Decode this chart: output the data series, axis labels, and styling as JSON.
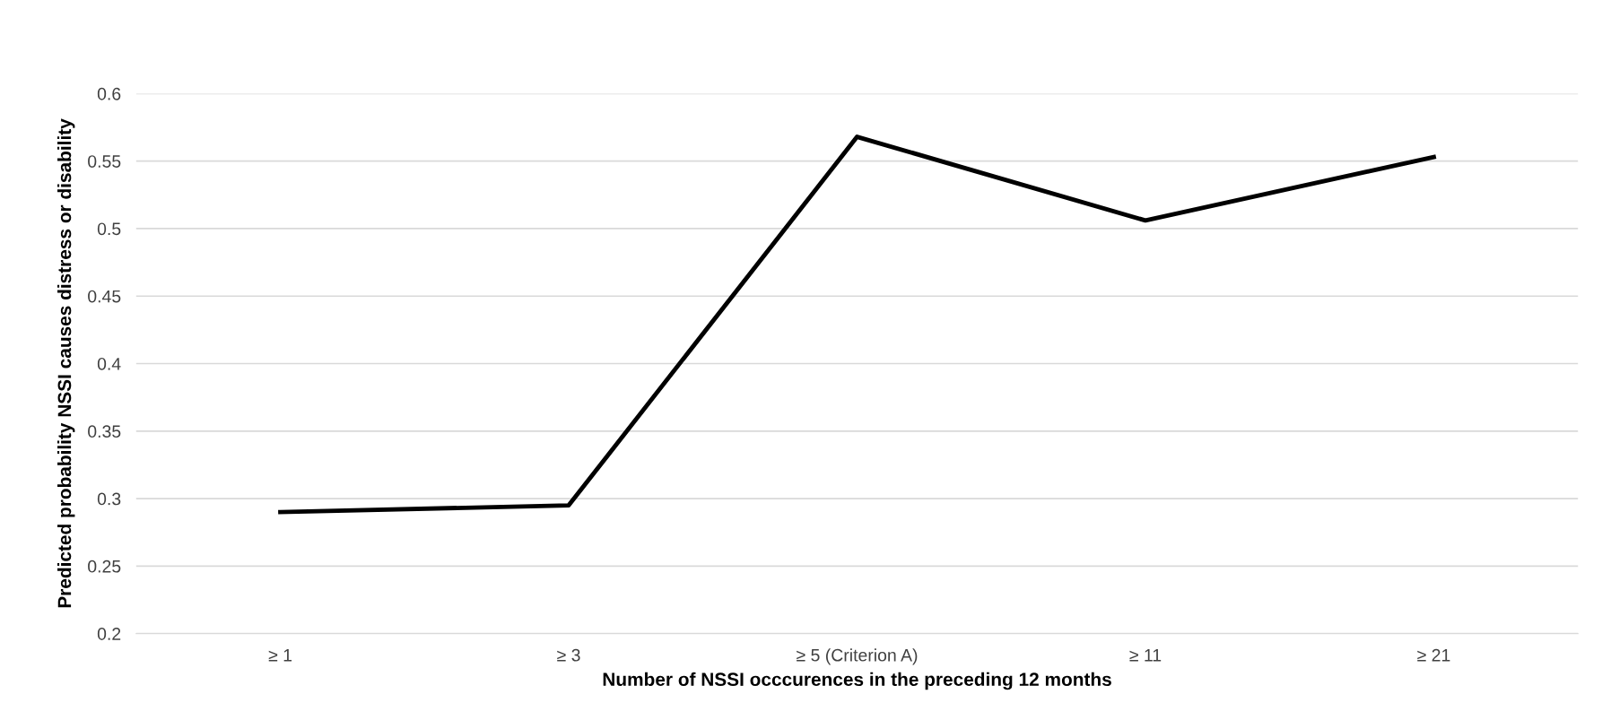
{
  "chart_data": {
    "type": "line",
    "categories": [
      "≥ 1",
      "≥ 3",
      "≥ 5 (Criterion A)",
      "≥ 11",
      "≥ 21"
    ],
    "series": [
      {
        "color": "#000000",
        "values": [
          0.29,
          0.295,
          0.568,
          0.506,
          0.553
        ]
      }
    ],
    "xlabel": "Number of NSSI occcurences in the preceding 12 months",
    "ylabel": "Predicted probability NSSI causes distress or disability",
    "ylim": [
      0.2,
      0.6
    ],
    "yticks": [
      0.2,
      0.25,
      0.3,
      0.35,
      0.4,
      0.45,
      0.5,
      0.55,
      0.6
    ],
    "grid": "y",
    "legend": false,
    "marker": "none",
    "line_style": "solid"
  }
}
